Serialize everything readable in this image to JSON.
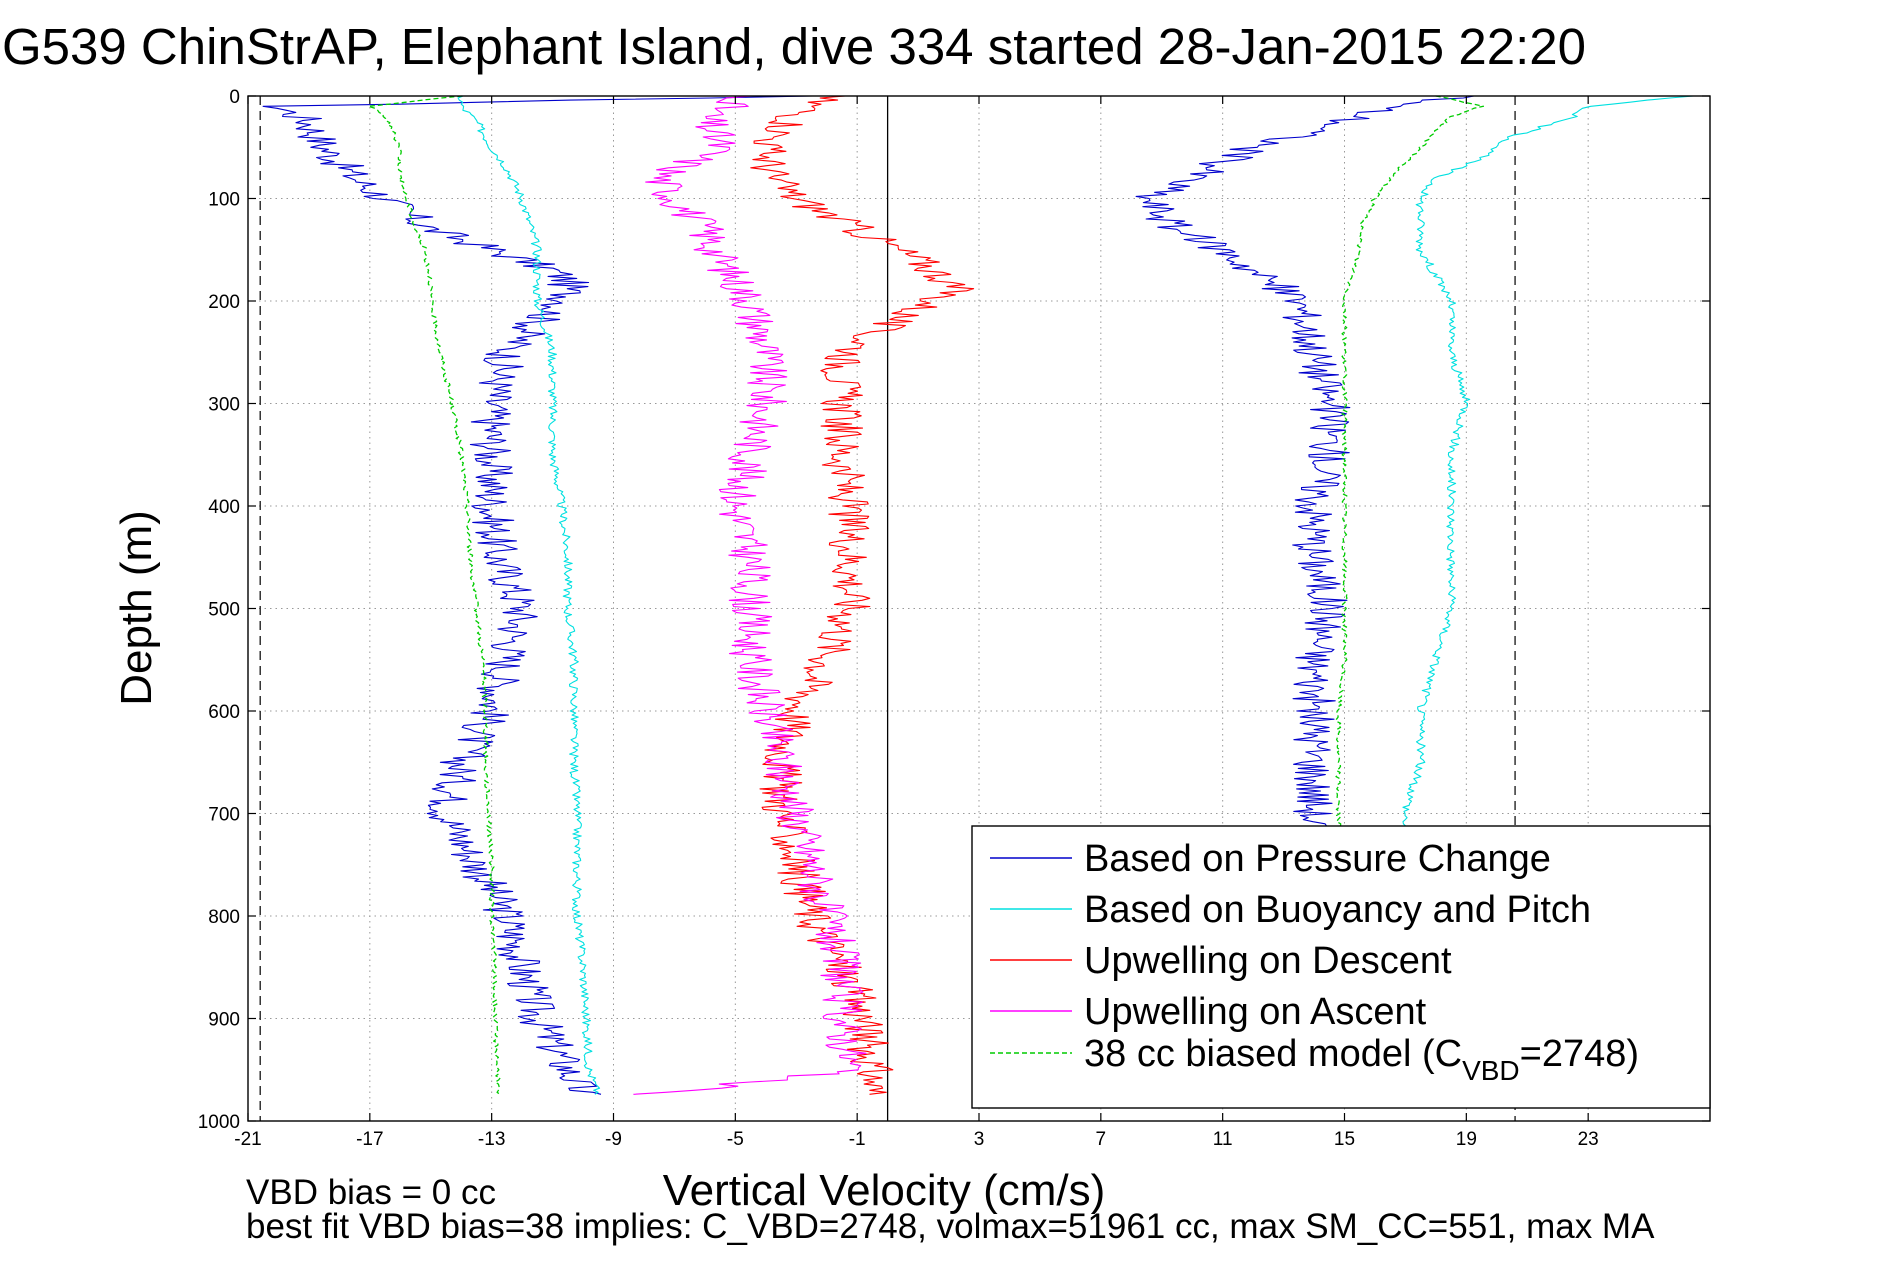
{
  "chart_data": {
    "type": "line",
    "title": "G539 ChinStrAP, Elephant Island, dive 334 started 28-Jan-2015 22:20",
    "xlabel": "Vertical Velocity (cm/s)",
    "ylabel": "Depth (m)",
    "xlim": [
      -21,
      27
    ],
    "ylim": [
      0,
      1000
    ],
    "y_reversed": true,
    "grid": "dotted",
    "xticks": [
      -21,
      -17,
      -13,
      -9,
      -5,
      -1,
      3,
      7,
      11,
      15,
      19,
      23
    ],
    "yticks": [
      0,
      100,
      200,
      300,
      400,
      500,
      600,
      700,
      800,
      900,
      1000
    ],
    "reference_lines": {
      "solid_vertical_x": 0,
      "dashed_vertical_x": [
        -20.6,
        20.6
      ]
    },
    "legend": {
      "placement": "bottom-right",
      "entries": [
        {
          "label": "Based on Pressure Change",
          "color": "#0000cc",
          "style": "solid"
        },
        {
          "label": "Based on Buoyancy and Pitch",
          "color": "#00e0e0",
          "style": "solid"
        },
        {
          "label": "Upwelling on Descent",
          "color": "#ff0000",
          "style": "solid"
        },
        {
          "label": "Upwelling on Ascent",
          "color": "#ff00ff",
          "style": "solid"
        },
        {
          "label_main": "38 cc biased model (C",
          "label_sub": "VBD",
          "label_tail": "=2748)",
          "color": "#00cc00",
          "style": "dashed"
        }
      ]
    },
    "series": [
      {
        "name": "Based on Pressure Change (descent)",
        "color": "#0000cc",
        "depth": [
          0,
          10,
          25,
          50,
          80,
          100,
          130,
          150,
          170,
          180,
          200,
          220,
          250,
          300,
          350,
          400,
          450,
          500,
          550,
          600,
          650,
          700,
          750,
          800,
          850,
          900,
          950,
          975
        ],
        "velocity": [
          -3,
          -20,
          -19,
          -18.5,
          -17.5,
          -16.5,
          -15,
          -13,
          -11,
          -10.5,
          -10.5,
          -11.5,
          -12.5,
          -13,
          -13,
          -13,
          -12.8,
          -12,
          -12.5,
          -13,
          -14,
          -14.5,
          -13.5,
          -12.5,
          -12,
          -11.5,
          -10.5,
          -10
        ]
      },
      {
        "name": "Based on Buoyancy and Pitch (descent)",
        "color": "#00e0e0",
        "depth": [
          0,
          5,
          10,
          25,
          50,
          70,
          100,
          150,
          200,
          250,
          300,
          350,
          400,
          450,
          500,
          550,
          600,
          650,
          700,
          750,
          800,
          850,
          900,
          950,
          975
        ],
        "velocity": [
          -14,
          -14,
          -14,
          -13.5,
          -13,
          -12.5,
          -12,
          -11.5,
          -11.5,
          -11,
          -11,
          -11,
          -10.7,
          -10.5,
          -10.5,
          -10.3,
          -10.3,
          -10.3,
          -10.2,
          -10.2,
          -10.2,
          -10,
          -9.9,
          -9.8,
          -9.5
        ]
      },
      {
        "name": "Upwelling on Descent",
        "color": "#ff0000",
        "depth": [
          0,
          20,
          50,
          80,
          100,
          130,
          160,
          180,
          190,
          200,
          230,
          260,
          300,
          350,
          400,
          450,
          500,
          550,
          600,
          650,
          700,
          750,
          800,
          850,
          900,
          950,
          975
        ],
        "velocity": [
          -2,
          -3,
          -4,
          -3.8,
          -3,
          -1,
          1,
          2,
          2.2,
          1.5,
          -0.5,
          -1.5,
          -1.5,
          -1.5,
          -1.3,
          -1.2,
          -1.2,
          -2,
          -3,
          -3.5,
          -3.5,
          -3,
          -2.5,
          -1.5,
          -0.8,
          -0.5,
          -0.5
        ]
      },
      {
        "name": "Upwelling on Ascent",
        "color": "#ff00ff",
        "depth": [
          0,
          20,
          50,
          80,
          100,
          130,
          160,
          200,
          250,
          300,
          350,
          400,
          450,
          500,
          550,
          600,
          650,
          700,
          750,
          800,
          850,
          900,
          950,
          975
        ],
        "velocity": [
          -4.5,
          -6,
          -5.5,
          -7.5,
          -7,
          -6,
          -5.5,
          -4.5,
          -4,
          -4,
          -4.5,
          -5,
          -4.5,
          -4.5,
          -4.5,
          -4,
          -3.5,
          -3,
          -2.5,
          -2,
          -1.5,
          -1.5,
          -1.2,
          -8
        ]
      },
      {
        "name": "Based on Pressure Change (ascent)",
        "color": "#0000cc",
        "depth": [
          0,
          10,
          30,
          50,
          80,
          100,
          130,
          150,
          180,
          200,
          250,
          300,
          350,
          400,
          450,
          500,
          550,
          600,
          650,
          700,
          720
        ],
        "velocity": [
          19,
          16.5,
          14.5,
          12,
          10,
          8.5,
          9.5,
          11,
          12.5,
          13.5,
          14,
          14.5,
          14.5,
          14,
          14,
          14.5,
          14,
          14,
          14,
          14,
          14
        ]
      },
      {
        "name": "Based on Buoyancy and Pitch (ascent)",
        "color": "#00e0e0",
        "depth": [
          0,
          10,
          20,
          40,
          60,
          80,
          100,
          150,
          200,
          250,
          300,
          350,
          400,
          450,
          500,
          550,
          600,
          650,
          700,
          720
        ],
        "velocity": [
          26.5,
          23,
          22.5,
          20.5,
          19.5,
          18,
          17.5,
          17.5,
          18.5,
          18.5,
          19,
          18.5,
          18.5,
          18.5,
          18.5,
          18,
          17.5,
          17.5,
          17,
          17
        ]
      },
      {
        "name": "38 cc biased model (descent)",
        "color": "#00cc00",
        "style": "dashed",
        "depth": [
          0,
          10,
          20,
          50,
          80,
          100,
          130,
          150,
          180,
          200,
          250,
          300,
          350,
          400,
          450,
          500,
          550,
          600,
          650,
          700,
          750,
          800,
          850,
          900,
          950,
          975
        ],
        "velocity": [
          -14,
          -17,
          -16.5,
          -16,
          -16,
          -15.8,
          -15.5,
          -15.2,
          -15,
          -15,
          -14.7,
          -14.3,
          -14,
          -13.8,
          -13.7,
          -13.5,
          -13.3,
          -13.2,
          -13.2,
          -13.1,
          -13,
          -13,
          -12.9,
          -12.9,
          -12.8,
          -12.8
        ]
      },
      {
        "name": "38 cc biased model (ascent)",
        "color": "#00cc00",
        "style": "dashed",
        "depth": [
          0,
          10,
          20,
          50,
          80,
          100,
          130,
          150,
          200,
          250,
          300,
          350,
          400,
          450,
          500,
          550,
          600,
          650,
          700,
          720
        ],
        "velocity": [
          18,
          19.5,
          18.5,
          17.5,
          16.5,
          16,
          15.5,
          15.5,
          15,
          15,
          15,
          15,
          15,
          15,
          15,
          15,
          14.8,
          14.8,
          14.8,
          14.8
        ]
      }
    ]
  },
  "footer": {
    "line1": "VBD bias = 0 cc",
    "line2": "best fit VBD bias=38 implies: C_VBD=2748, volmax=51961 cc, max SM_CC=551, max MA"
  }
}
